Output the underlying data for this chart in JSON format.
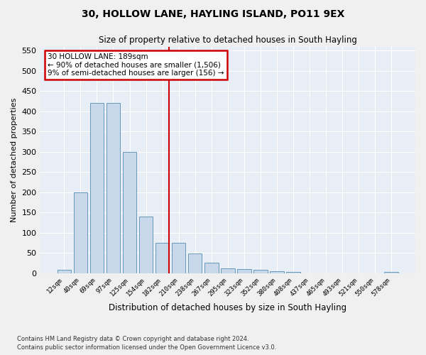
{
  "title": "30, HOLLOW LANE, HAYLING ISLAND, PO11 9EX",
  "subtitle": "Size of property relative to detached houses in South Hayling",
  "xlabel": "Distribution of detached houses by size in South Hayling",
  "ylabel": "Number of detached properties",
  "categories": [
    "12sqm",
    "40sqm",
    "69sqm",
    "97sqm",
    "125sqm",
    "154sqm",
    "182sqm",
    "210sqm",
    "238sqm",
    "267sqm",
    "295sqm",
    "323sqm",
    "352sqm",
    "380sqm",
    "408sqm",
    "437sqm",
    "465sqm",
    "493sqm",
    "521sqm",
    "550sqm",
    "578sqm"
  ],
  "values": [
    8,
    200,
    420,
    420,
    300,
    140,
    75,
    75,
    48,
    25,
    12,
    10,
    8,
    4,
    3,
    0,
    0,
    0,
    0,
    0,
    3
  ],
  "bar_color": "#c8d8ea",
  "bar_edge_color": "#6699bb",
  "figure_bg": "#f0f0f0",
  "axes_bg": "#e8eef5",
  "grid_color": "#ffffff",
  "marker_label": "30 HOLLOW LANE: 189sqm",
  "annotation_line1": "← 90% of detached houses are smaller (1,506)",
  "annotation_line2": "9% of semi-detached houses are larger (156) →",
  "marker_bar_index": 6,
  "annotation_box_color": "#ffffff",
  "annotation_box_edge": "#cc0000",
  "marker_line_color": "#cc0000",
  "ylim": [
    0,
    560
  ],
  "yticks": [
    0,
    50,
    100,
    150,
    200,
    250,
    300,
    350,
    400,
    450,
    500,
    550
  ],
  "footnote1": "Contains HM Land Registry data © Crown copyright and database right 2024.",
  "footnote2": "Contains public sector information licensed under the Open Government Licence v3.0."
}
